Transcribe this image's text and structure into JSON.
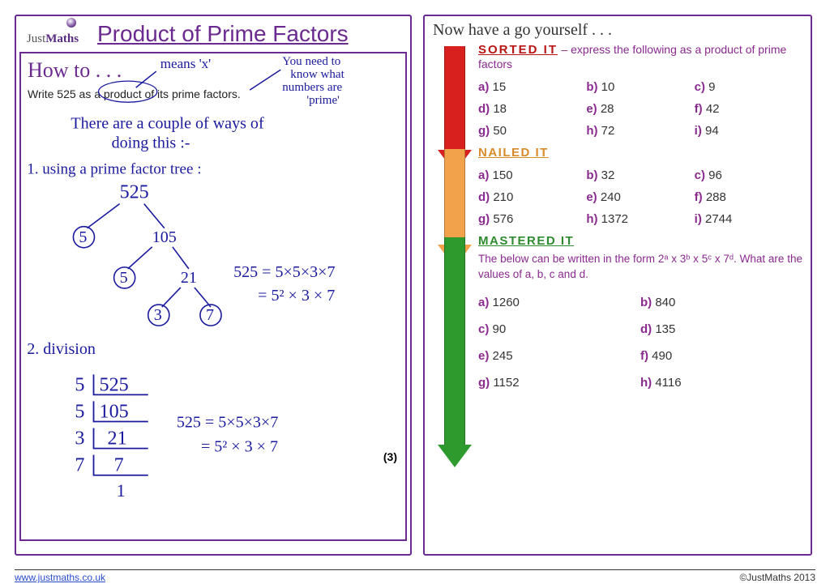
{
  "logo": {
    "just": "Just",
    "maths": "Maths"
  },
  "title": "Product of Prime Factors",
  "howto": {
    "heading": "How to . . .",
    "question": "Write 525 as a product of its prime factors.",
    "marks": "(3)",
    "annot_means": "means 'x'",
    "annot_need1": "You need to",
    "annot_need2": "know what",
    "annot_need3": "numbers are",
    "annot_need4": "'prime'",
    "intro1": "There are a couple of ways of",
    "intro2": "doing this :-",
    "method1": "1. using a prime factor tree :",
    "tree_root": "525",
    "tree_5a": "5",
    "tree_105": "105",
    "tree_5b": "5",
    "tree_21": "21",
    "tree_3": "3",
    "tree_7": "7",
    "eq1": "525 = 5×5×3×7",
    "eq2": "= 5² × 3 × 7",
    "method2": "2. division",
    "div1": "5 | 525",
    "div2": "5 | 105",
    "div3": "3 |  21",
    "div4": "7 |   7",
    "div5": "      1",
    "eq3": "525 = 5×5×3×7",
    "eq4": "= 5² × 3 × 7"
  },
  "right": {
    "heading": "Now have a go yourself . . .",
    "sorted": {
      "title": "SORTED  IT",
      "sub": "– express the following as a product of prime factors",
      "rows": [
        [
          {
            "l": "a)",
            "v": "15"
          },
          {
            "l": "b)",
            "v": "10"
          },
          {
            "l": "c)",
            "v": "9"
          }
        ],
        [
          {
            "l": "d)",
            "v": "18"
          },
          {
            "l": "e)",
            "v": "28"
          },
          {
            "l": "f)",
            "v": "42"
          }
        ],
        [
          {
            "l": "g)",
            "v": "50"
          },
          {
            "l": "h)",
            "v": "72"
          },
          {
            "l": "i)",
            "v": "94"
          }
        ]
      ],
      "arrow_height": 128
    },
    "nailed": {
      "title": "NAILED IT",
      "rows": [
        [
          {
            "l": "a)",
            "v": "150"
          },
          {
            "l": "b)",
            "v": "32"
          },
          {
            "l": "c)",
            "v": "96"
          }
        ],
        [
          {
            "l": "d)",
            "v": "210"
          },
          {
            "l": "e)",
            "v": "240"
          },
          {
            "l": "f)",
            "v": "288"
          }
        ],
        [
          {
            "l": "g)",
            "v": "576"
          },
          {
            "l": "h)",
            "v": "1372"
          },
          {
            "l": "i)",
            "v": "2744"
          }
        ]
      ],
      "arrow_height": 118
    },
    "mastered": {
      "title": "MASTERED IT",
      "text": "The below can be written in the form 2ᵃ x 3ᵇ x 5ᶜ x 7ᵈ. What are the values of a, b, c and d.",
      "rows": [
        [
          {
            "l": "a)",
            "v": "1260"
          },
          {
            "l": "b)",
            "v": "840"
          }
        ],
        [
          {
            "l": "c)",
            "v": "90"
          },
          {
            "l": "d)",
            "v": "135"
          }
        ],
        [
          {
            "l": "e)",
            "v": "245"
          },
          {
            "l": "f)",
            "v": "490"
          }
        ],
        [
          {
            "l": "g)",
            "v": "1152"
          },
          {
            "l": "h)",
            "v": "4116"
          }
        ]
      ],
      "arrow_height": 256
    }
  },
  "footer": {
    "url": "www.justmaths.co.uk",
    "copy": "©JustMaths 2013"
  },
  "colors": {
    "purple": "#6b2a8f",
    "magenta": "#8a2a8f",
    "ink": "#1a1a9e",
    "red": "#d8201e",
    "orange": "#f2a24a",
    "green": "#2e9a2e"
  }
}
